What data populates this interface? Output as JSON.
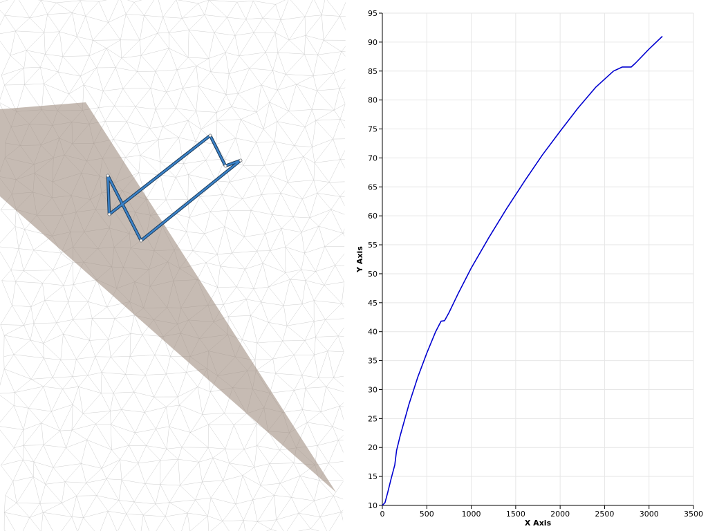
{
  "render_view": {
    "mesh_color": "#c8c8c8",
    "plane_color": "#a08e80",
    "line_color": "#3a82c8",
    "line_dark_color": "#1e3c5a",
    "point_color": "#ffffff"
  },
  "chart_data": {
    "type": "line",
    "xlabel": "X Axis",
    "ylabel": "Y Axis",
    "xlim": [
      0,
      3500
    ],
    "ylim": [
      10,
      95
    ],
    "x_ticks": [
      0,
      500,
      1000,
      1500,
      2000,
      2500,
      3000,
      3500
    ],
    "y_ticks": [
      10,
      15,
      20,
      25,
      30,
      35,
      40,
      45,
      50,
      55,
      60,
      65,
      70,
      75,
      80,
      85,
      90,
      95
    ],
    "grid": true,
    "legend": "none",
    "series": [
      {
        "color": "#0000d0",
        "x": [
          0,
          30,
          60,
          100,
          140,
          160,
          200,
          300,
          400,
          500,
          600,
          660,
          700,
          750,
          850,
          1000,
          1200,
          1400,
          1600,
          1800,
          2000,
          2200,
          2400,
          2600,
          2700,
          2720,
          2800,
          2850,
          3000,
          3150
        ],
        "y": [
          10,
          10.5,
          12.2,
          14.7,
          17.0,
          19.5,
          22.0,
          27.5,
          32.2,
          36.3,
          40.0,
          41.8,
          41.9,
          43.3,
          46.5,
          51.0,
          56.3,
          61.3,
          66.0,
          70.5,
          74.6,
          78.6,
          82.2,
          85.0,
          85.7,
          85.7,
          85.7,
          86.4,
          88.8,
          91.0
        ]
      }
    ]
  }
}
